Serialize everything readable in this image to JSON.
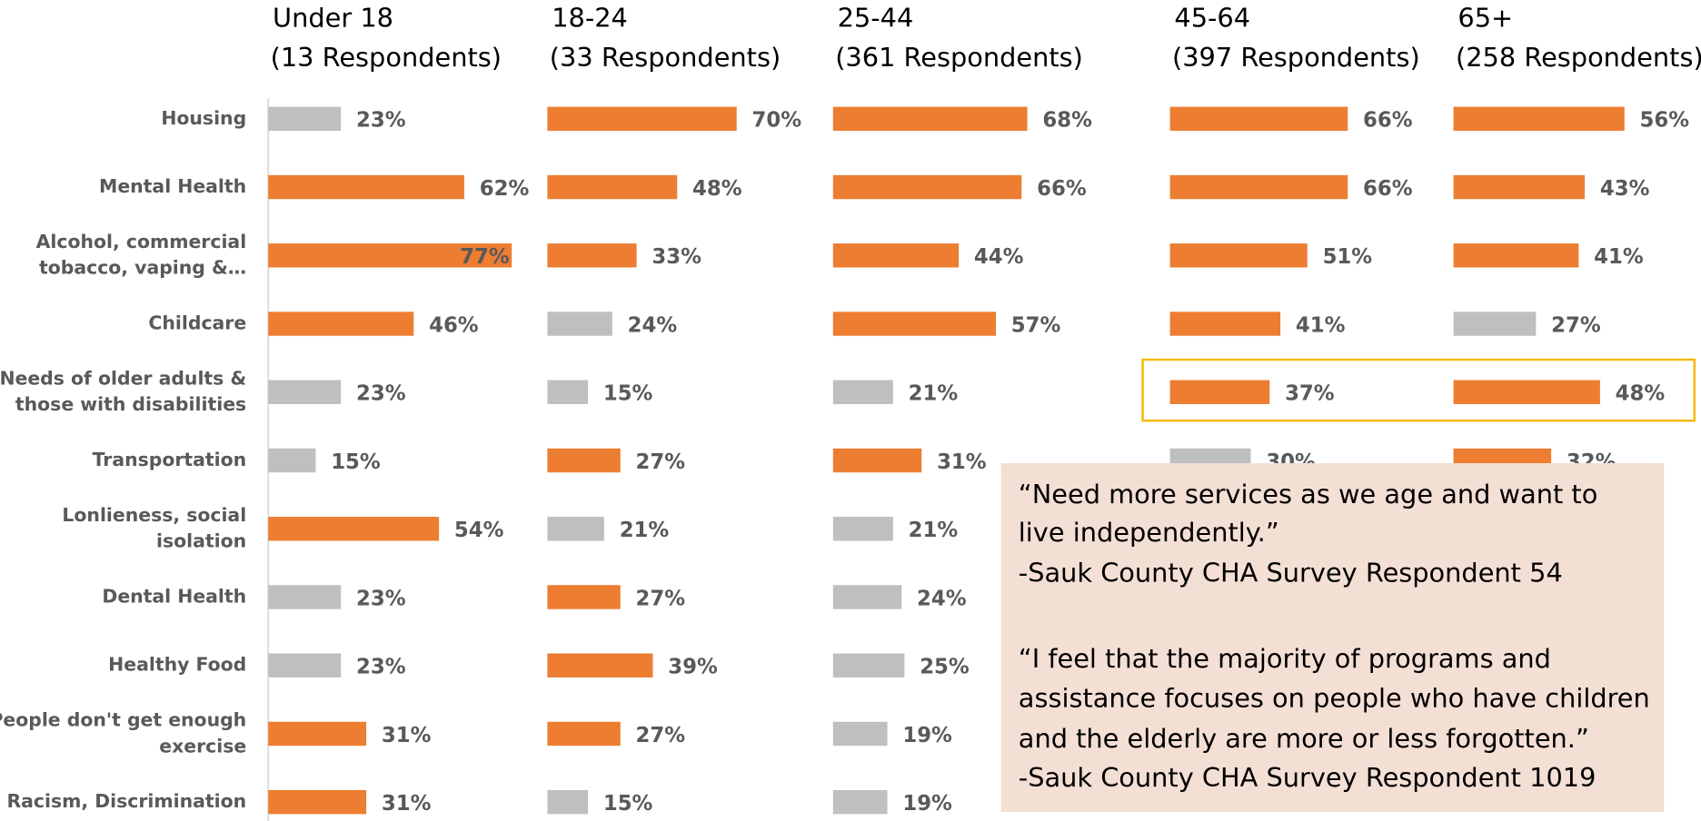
{
  "chart_data": [
    {
      "type": "bar",
      "title": "Under 18",
      "subtitle": "(13 Respondents)",
      "categories": [
        "Housing",
        "Mental Health",
        [
          "Alcohol, commercial",
          "tobacco, vaping &…"
        ],
        "Childcare",
        [
          "Needs of older adults &",
          "those with disabilities"
        ],
        "Transportation",
        [
          "Lonlieness, social",
          "isolation"
        ],
        "Dental Health",
        "Healthy Food",
        [
          "People don't get enough",
          "exercise"
        ],
        "Racism, Discrimination"
      ],
      "values": [
        23,
        62,
        77,
        46,
        23,
        15,
        54,
        23,
        23,
        31,
        31
      ],
      "value_labels": [
        "23%",
        "62%",
        "77%",
        "46%",
        "23%",
        "15%",
        "54%",
        "23%",
        "23%",
        "31%",
        "31%"
      ],
      "colors": [
        "#bfbfbf",
        "#ed7d31",
        "#ed7d31",
        "#ed7d31",
        "#bfbfbf",
        "#bfbfbf",
        "#ed7d31",
        "#bfbfbf",
        "#bfbfbf",
        "#ed7d31",
        "#ed7d31"
      ],
      "xlim": [
        0,
        100
      ]
    },
    {
      "type": "bar",
      "title": "18-24",
      "subtitle": "(33 Respondents)",
      "values": [
        70,
        48,
        33,
        24,
        15,
        27,
        21,
        27,
        39,
        27,
        15
      ],
      "value_labels": [
        "70%",
        "48%",
        "33%",
        "24%",
        "15%",
        "27%",
        "21%",
        "27%",
        "39%",
        "27%",
        "15%"
      ],
      "colors": [
        "#ed7d31",
        "#ed7d31",
        "#ed7d31",
        "#bfbfbf",
        "#bfbfbf",
        "#ed7d31",
        "#bfbfbf",
        "#ed7d31",
        "#ed7d31",
        "#ed7d31",
        "#bfbfbf"
      ],
      "xlim": [
        0,
        100
      ]
    },
    {
      "type": "bar",
      "title": "25-44",
      "subtitle": "(361 Respondents)",
      "values": [
        68,
        66,
        44,
        57,
        21,
        31,
        21,
        24,
        25,
        19,
        19
      ],
      "value_labels": [
        "68%",
        "66%",
        "44%",
        "57%",
        "21%",
        "31%",
        "21%",
        "24%",
        "25%",
        "19%",
        "19%"
      ],
      "colors": [
        "#ed7d31",
        "#ed7d31",
        "#ed7d31",
        "#ed7d31",
        "#bfbfbf",
        "#ed7d31",
        "#bfbfbf",
        "#bfbfbf",
        "#bfbfbf",
        "#bfbfbf",
        "#bfbfbf"
      ],
      "xlim": [
        0,
        100
      ]
    },
    {
      "type": "bar",
      "title": "45-64",
      "subtitle": "(397 Respondents)",
      "values": [
        66,
        66,
        51,
        41,
        37,
        30,
        null,
        null,
        null,
        null,
        null
      ],
      "value_labels": [
        "66%",
        "66%",
        "51%",
        "41%",
        "37%",
        "30%",
        null,
        null,
        null,
        null,
        null
      ],
      "colors": [
        "#ed7d31",
        "#ed7d31",
        "#ed7d31",
        "#ed7d31",
        "#ed7d31",
        "#bfbfbf",
        null,
        null,
        null,
        null,
        null
      ],
      "xlim": [
        0,
        100
      ]
    },
    {
      "type": "bar",
      "title": "65+",
      "subtitle": "(258 Respondents)",
      "values": [
        56,
        43,
        41,
        27,
        48,
        32,
        null,
        null,
        null,
        null,
        null
      ],
      "value_labels": [
        "56%",
        "43%",
        "41%",
        "27%",
        "48%",
        "32%",
        null,
        null,
        null,
        null,
        null
      ],
      "colors": [
        "#ed7d31",
        "#ed7d31",
        "#ed7d31",
        "#bfbfbf",
        "#ed7d31",
        "#ed7d31",
        null,
        null,
        null,
        null,
        null
      ],
      "xlim": [
        0,
        100
      ]
    }
  ],
  "quote": {
    "lines": [
      "“Need more services as we age and want to",
      "live independently.”",
      "-Sauk County CHA Survey Respondent 54",
      "“I feel that the majority of programs and",
      "assistance focuses on people who have children",
      "and the elderly are more or less forgotten.”",
      "-Sauk County CHA Survey Respondent 1019"
    ]
  }
}
